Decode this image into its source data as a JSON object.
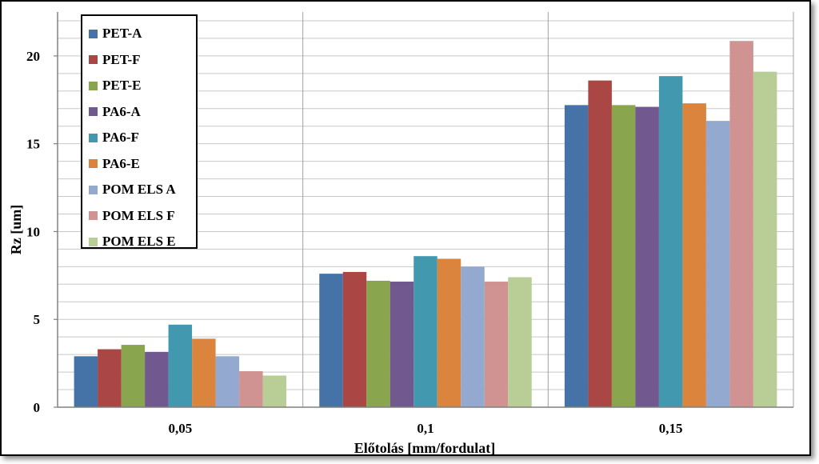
{
  "chart_data": {
    "type": "bar",
    "title": "",
    "xlabel": "Előtolás [mm/fordulat]",
    "ylabel": "Rz [um]",
    "categories": [
      "0,05",
      "0,1",
      "0,15"
    ],
    "ylim": [
      0,
      22.5
    ],
    "yticks": [
      "0",
      "5",
      "10",
      "15",
      "20"
    ],
    "grid": true,
    "legend_position": "top-left",
    "series": [
      {
        "name": "PET-A",
        "color": "#4572A7",
        "values": [
          2.9,
          7.6,
          17.2
        ]
      },
      {
        "name": "PET-F",
        "color": "#AA4643",
        "values": [
          3.3,
          7.7,
          18.6
        ]
      },
      {
        "name": "PET-E",
        "color": "#89A54E",
        "values": [
          3.55,
          7.2,
          17.2
        ]
      },
      {
        "name": "PA6-A",
        "color": "#71588F",
        "values": [
          3.15,
          7.15,
          17.1
        ]
      },
      {
        "name": "PA6-F",
        "color": "#4198AF",
        "values": [
          4.7,
          8.6,
          18.85
        ]
      },
      {
        "name": "PA6-E",
        "color": "#DB843D",
        "values": [
          3.9,
          8.45,
          17.3
        ]
      },
      {
        "name": "POM ELS A",
        "color": "#93A9CF",
        "values": [
          2.9,
          8.0,
          16.3
        ]
      },
      {
        "name": "POM ELS F",
        "color": "#D19392",
        "values": [
          2.05,
          7.15,
          20.85
        ]
      },
      {
        "name": "POM ELS E",
        "color": "#B9CD96",
        "values": [
          1.8,
          7.4,
          19.1
        ]
      }
    ]
  }
}
